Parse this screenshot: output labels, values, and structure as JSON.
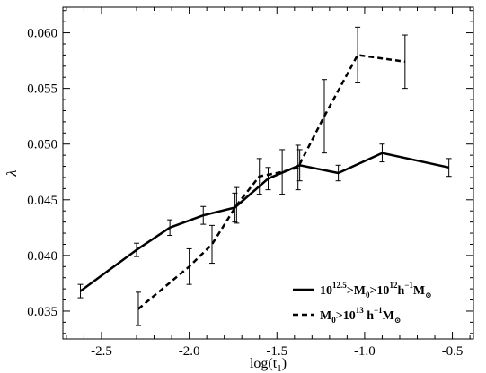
{
  "chart_data": {
    "type": "line",
    "title": "",
    "xlabel": "log(t",
    "xlabel_sub": "1",
    "xlabel_close": ")",
    "ylabel": "λ",
    "xlim": [
      -2.72,
      -0.38
    ],
    "ylim": [
      0.0325,
      0.0623
    ],
    "xticks": [
      -2.5,
      -2.0,
      -1.5,
      -1.0,
      -0.5
    ],
    "xtick_labels": [
      "-2.5",
      "-2.0",
      "-1.5",
      "-1.0",
      "-0.5"
    ],
    "yticks": [
      0.035,
      0.04,
      0.045,
      0.05,
      0.055,
      0.06
    ],
    "ytick_labels": [
      "0.035",
      "0.040",
      "0.045",
      "0.050",
      "0.055",
      "0.060"
    ],
    "grid": false,
    "legend_position": "bottom-right",
    "series": [
      {
        "key": "low_mass",
        "style": "solid",
        "color": "#000000",
        "legend": {
          "base": "10",
          "exp1": "12.5",
          "mid": ">M",
          "sub": "0",
          "gt": ">10",
          "exp2": "12",
          "h": "h",
          "exp3": "−1",
          "M": "M",
          "sun": "⊙"
        },
        "points": [
          {
            "x": -2.62,
            "y": 0.0368,
            "err": 0.0006
          },
          {
            "x": -2.3,
            "y": 0.0405,
            "err": 0.0006
          },
          {
            "x": -2.11,
            "y": 0.0425,
            "err": 0.0007
          },
          {
            "x": -1.92,
            "y": 0.0436,
            "err": 0.0008
          },
          {
            "x": -1.74,
            "y": 0.0443,
            "err": 0.0013
          },
          {
            "x": -1.55,
            "y": 0.0469,
            "err": 0.001
          },
          {
            "x": -1.37,
            "y": 0.0481,
            "err": 0.0014
          },
          {
            "x": -1.15,
            "y": 0.0474,
            "err": 0.0007
          },
          {
            "x": -0.9,
            "y": 0.0492,
            "err": 0.0008
          },
          {
            "x": -0.52,
            "y": 0.0479,
            "err": 0.0008
          }
        ]
      },
      {
        "key": "high_mass",
        "style": "dashed",
        "color": "#000000",
        "legend": {
          "M": "M",
          "sub": "0",
          "gt": ">10",
          "exp": "13",
          "h": " h",
          "exp2": "−1",
          "M2": "M",
          "sun": "⊙"
        },
        "points": [
          {
            "x": -2.29,
            "y": 0.0352,
            "err": 0.0015
          },
          {
            "x": -2.0,
            "y": 0.039,
            "err": 0.0016
          },
          {
            "x": -1.87,
            "y": 0.041,
            "err": 0.0017
          },
          {
            "x": -1.73,
            "y": 0.0445,
            "err": 0.0016
          },
          {
            "x": -1.6,
            "y": 0.0471,
            "err": 0.0016
          },
          {
            "x": -1.47,
            "y": 0.0475,
            "err": 0.002
          },
          {
            "x": -1.38,
            "y": 0.0479,
            "err": 0.002
          },
          {
            "x": -1.23,
            "y": 0.0525,
            "err": 0.0033
          },
          {
            "x": -1.04,
            "y": 0.058,
            "err": 0.0025
          },
          {
            "x": -0.77,
            "y": 0.0574,
            "err": 0.0024
          }
        ]
      }
    ]
  }
}
